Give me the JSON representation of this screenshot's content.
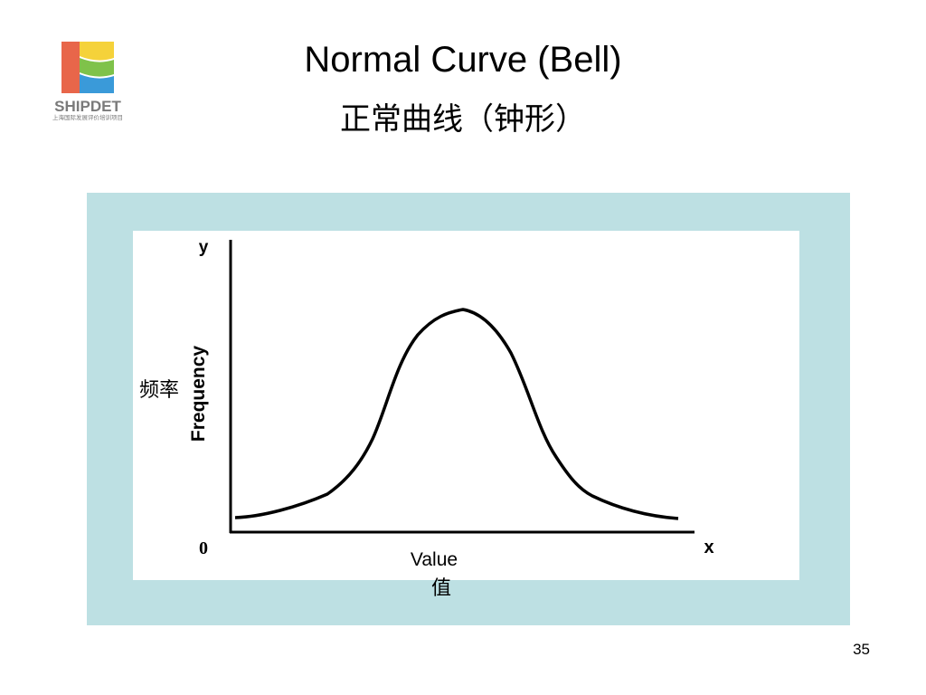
{
  "logo": {
    "name": "SHIPDET",
    "caption": "上海国际发展评价培训项目"
  },
  "header": {
    "title": "Normal Curve (Bell)",
    "subtitle": "正常曲线（钟形）"
  },
  "diagram": {
    "y_axis": {
      "label": "y",
      "name": "Frequency",
      "name_cn": "频率"
    },
    "origin": "0",
    "x_axis": {
      "label": "x",
      "name": "Value",
      "name_cn": "值"
    }
  },
  "page_number": "35"
}
